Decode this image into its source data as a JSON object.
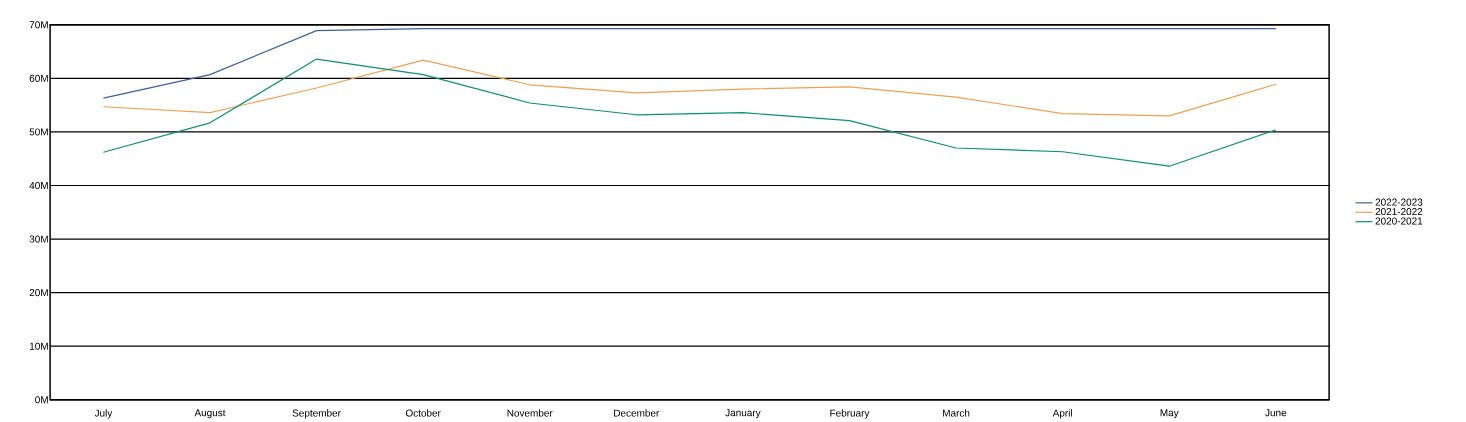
{
  "chart_data": {
    "type": "line",
    "categories": [
      "July",
      "August",
      "September",
      "October",
      "November",
      "December",
      "January",
      "February",
      "March",
      "April",
      "May",
      "June"
    ],
    "series": [
      {
        "name": "2022-2023",
        "color": "#3a5f9a",
        "values": [
          56.3,
          60.7,
          68.9,
          69.3,
          69.3,
          69.3,
          69.3,
          69.3,
          69.3,
          69.3,
          69.3,
          69.3
        ]
      },
      {
        "name": "2021-2022",
        "color": "#f0a050",
        "values": [
          54.7,
          53.6,
          58.2,
          63.4,
          58.8,
          57.3,
          58.0,
          58.4,
          56.5,
          53.4,
          53.0,
          58.9
        ]
      },
      {
        "name": "2020-2021",
        "color": "#0a9070",
        "values": [
          46.2,
          51.7,
          63.6,
          60.7,
          55.4,
          53.2,
          53.6,
          52.1,
          47.0,
          46.3,
          43.6,
          50.4
        ]
      }
    ],
    "ylim": [
      0,
      70
    ],
    "yticks": [
      {
        "value": 0,
        "label": "0M"
      },
      {
        "value": 10,
        "label": "10M"
      },
      {
        "value": 20,
        "label": "20M"
      },
      {
        "value": 30,
        "label": "30M"
      },
      {
        "value": 40,
        "label": "40M"
      },
      {
        "value": 50,
        "label": "50M"
      },
      {
        "value": 60,
        "label": "60M"
      },
      {
        "value": 70,
        "label": "70M"
      }
    ],
    "grid": "y",
    "legend": "right",
    "marker": "none",
    "line_style": "solid"
  }
}
